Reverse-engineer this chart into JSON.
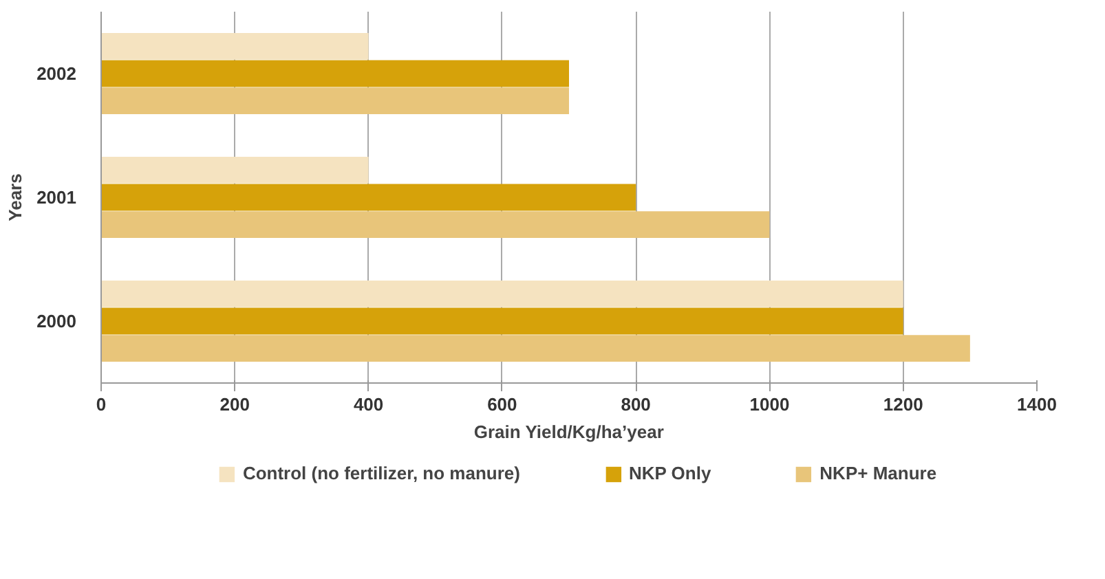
{
  "chart_data": {
    "type": "bar",
    "orientation": "horizontal",
    "xlabel": "Grain Yield/Kg/ha’year",
    "ylabel": "Years",
    "categories": [
      "2002",
      "2001",
      "2000"
    ],
    "series": [
      {
        "name": "Control (no fertilizer, no manure)",
        "color": "#f5e3c0",
        "values": [
          400,
          400,
          1200
        ]
      },
      {
        "name": "NKP Only",
        "color": "#d6a20a",
        "values": [
          700,
          800,
          1200
        ]
      },
      {
        "name": "NKP+ Manure",
        "color": "#e8c57a",
        "values": [
          700,
          1000,
          1300
        ]
      }
    ],
    "xlim": [
      0,
      1400
    ],
    "xticks": [
      0,
      200,
      400,
      600,
      800,
      1000,
      1200,
      1400
    ],
    "grid": "x",
    "legend": "bottom"
  }
}
